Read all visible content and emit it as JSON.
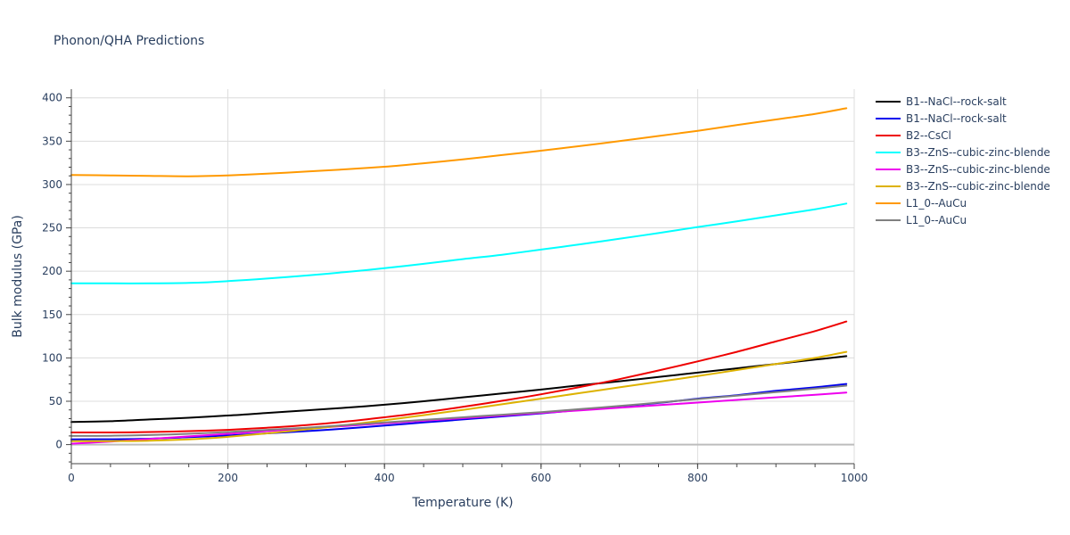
{
  "chart_data": {
    "type": "line",
    "title": "Phonon/QHA Predictions",
    "xlabel": "Temperature (K)",
    "ylabel": "Bulk modulus (GPa)",
    "xlim": [
      0,
      1000
    ],
    "ylim": [
      -22,
      410
    ],
    "x_ticks": [
      0,
      200,
      400,
      600,
      800,
      1000
    ],
    "y_ticks": [
      0,
      50,
      100,
      150,
      200,
      250,
      300,
      350,
      400
    ],
    "grid": true,
    "legend_position": "right",
    "series": [
      {
        "name": "B1--NaCl--rock-salt",
        "color": "#000000",
        "x": [
          0,
          50,
          100,
          150,
          200,
          250,
          300,
          350,
          400,
          450,
          500,
          550,
          600,
          650,
          700,
          750,
          800,
          850,
          900,
          950,
          990
        ],
        "y": [
          26,
          27,
          29,
          31,
          33.5,
          36.5,
          39.5,
          42.5,
          46,
          50,
          54.5,
          59,
          63.5,
          68.5,
          73,
          78,
          83,
          88,
          93,
          98,
          102
        ]
      },
      {
        "name": "B1--NaCl--rock-salt",
        "color": "#0000ee",
        "x": [
          0,
          50,
          100,
          150,
          200,
          250,
          300,
          350,
          400,
          450,
          500,
          550,
          600,
          650,
          700,
          750,
          800,
          850,
          900,
          950,
          990
        ],
        "y": [
          6,
          6.2,
          6.8,
          8.5,
          10.5,
          13,
          15.5,
          18.5,
          22,
          25.5,
          29,
          32.5,
          36,
          40,
          44,
          48,
          53,
          57,
          62,
          66,
          70
        ]
      },
      {
        "name": "B2--CsCl",
        "color": "#ee0000",
        "x": [
          0,
          50,
          100,
          150,
          200,
          250,
          300,
          350,
          400,
          450,
          500,
          550,
          600,
          650,
          700,
          750,
          800,
          850,
          900,
          950,
          990
        ],
        "y": [
          14,
          14,
          14.5,
          15.5,
          17,
          19.5,
          22.5,
          26.5,
          31.5,
          37,
          43.5,
          50.5,
          58,
          66.5,
          75.5,
          85.5,
          96,
          107,
          119,
          131,
          142
        ]
      },
      {
        "name": "B3--ZnS--cubic-zinc-blende",
        "color": "#00ffff",
        "x": [
          0,
          50,
          100,
          150,
          200,
          250,
          300,
          350,
          400,
          450,
          500,
          550,
          600,
          650,
          700,
          750,
          800,
          850,
          900,
          950,
          990
        ],
        "y": [
          186,
          186,
          186,
          186.5,
          188.5,
          191.5,
          195,
          199,
          203.5,
          208.5,
          214,
          219,
          225,
          231,
          237.5,
          244,
          251,
          257.5,
          264.5,
          271.5,
          278
        ]
      },
      {
        "name": "B3--ZnS--cubic-zinc-blende",
        "color": "#ee00ee",
        "x": [
          0,
          50,
          100,
          150,
          200,
          250,
          300,
          350,
          400,
          450,
          500,
          550,
          600,
          650,
          700,
          750,
          800,
          850,
          900,
          950,
          990
        ],
        "y": [
          1,
          3.5,
          6.5,
          9.5,
          12.5,
          15.5,
          18.5,
          21.5,
          24.5,
          27.5,
          30.5,
          33.5,
          36.5,
          39.5,
          42.5,
          45.5,
          48.5,
          51.5,
          54.5,
          57.5,
          60
        ]
      },
      {
        "name": "B3--ZnS--cubic-zinc-blende",
        "color": "#ddb200",
        "x": [
          0,
          50,
          100,
          150,
          200,
          250,
          300,
          350,
          400,
          450,
          500,
          550,
          600,
          650,
          700,
          750,
          800,
          850,
          900,
          950,
          990
        ],
        "y": [
          4,
          4,
          4.5,
          6,
          9,
          13,
          17.5,
          22.5,
          28,
          34,
          40,
          46.5,
          53,
          59.5,
          66,
          72.5,
          79,
          86,
          93,
          100,
          107
        ]
      },
      {
        "name": "L1_0--AuCu",
        "color": "#ff9900",
        "x": [
          0,
          50,
          100,
          150,
          200,
          250,
          300,
          350,
          400,
          450,
          500,
          550,
          600,
          650,
          700,
          750,
          800,
          850,
          900,
          950,
          990
        ],
        "y": [
          311,
          310.5,
          310,
          309.5,
          310.5,
          312.5,
          315,
          317.5,
          320.5,
          324.5,
          329,
          334,
          339,
          344.5,
          350,
          356,
          362,
          368.5,
          375,
          381.5,
          388
        ]
      },
      {
        "name": "L1_0--AuCu",
        "color": "#808080",
        "x": [
          0,
          50,
          100,
          150,
          200,
          250,
          300,
          350,
          400,
          450,
          500,
          550,
          600,
          650,
          700,
          750,
          800,
          850,
          900,
          950,
          990
        ],
        "y": [
          10,
          10.2,
          11,
          12.5,
          14.5,
          17,
          19.5,
          22.5,
          25.5,
          28.5,
          31.5,
          34.5,
          37.5,
          41,
          44.5,
          48.5,
          52.5,
          56.5,
          60.5,
          64.5,
          68
        ]
      }
    ]
  }
}
